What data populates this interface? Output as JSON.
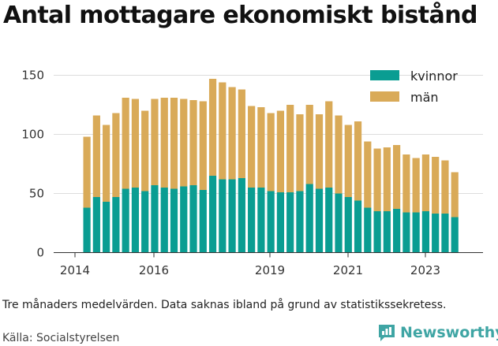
{
  "title": "Antal mottagare ekonomiskt bistånd",
  "caption": "Tre månaders medelvärden. Data saknas ibland på grund av statistikssekretess.",
  "source": "Källa: Socialstyrelsen",
  "brand": "Newsworthy",
  "colors": {
    "kvinnor": "#0a9d92",
    "man": "#d9aa58",
    "grid": "#dddddd",
    "brand": "#3fa5a4"
  },
  "chart_data": {
    "type": "bar",
    "stacked": true,
    "ylim": [
      0,
      160
    ],
    "yticks": [
      0,
      50,
      100,
      150
    ],
    "xticks": [
      "2014",
      "2016",
      "2019",
      "2021",
      "2023"
    ],
    "legend_position": "top-right",
    "series": [
      {
        "name": "kvinnor",
        "values": [
          38,
          47,
          43,
          47,
          54,
          55,
          52,
          57,
          55,
          54,
          56,
          57,
          53,
          65,
          62,
          62,
          63,
          55,
          55,
          52,
          51,
          51,
          52,
          58,
          54,
          55,
          50,
          47,
          44,
          38,
          35,
          35,
          37,
          34,
          34,
          35,
          33,
          33,
          30
        ]
      },
      {
        "name": "män",
        "values": [
          60,
          69,
          65,
          71,
          77,
          75,
          68,
          73,
          76,
          77,
          74,
          72,
          75,
          82,
          82,
          78,
          75,
          69,
          68,
          66,
          69,
          74,
          65,
          67,
          63,
          73,
          66,
          61,
          67,
          56,
          53,
          54,
          54,
          49,
          46,
          48,
          48,
          45,
          38
        ]
      }
    ]
  }
}
